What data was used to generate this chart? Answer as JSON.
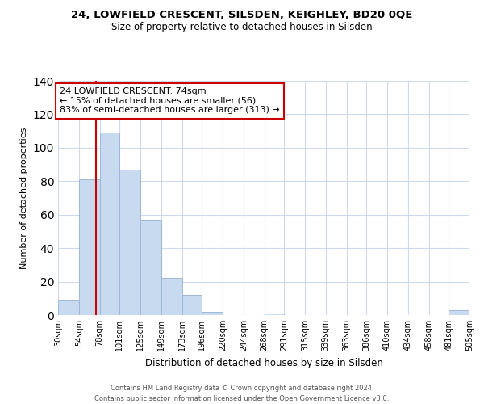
{
  "title": "24, LOWFIELD CRESCENT, SILSDEN, KEIGHLEY, BD20 0QE",
  "subtitle": "Size of property relative to detached houses in Silsden",
  "xlabel": "Distribution of detached houses by size in Silsden",
  "ylabel": "Number of detached properties",
  "bin_edges": [
    30,
    54,
    78,
    101,
    125,
    149,
    173,
    196,
    220,
    244,
    268,
    291,
    315,
    339,
    363,
    386,
    410,
    434,
    458,
    481,
    505
  ],
  "bar_heights": [
    9,
    81,
    109,
    87,
    57,
    22,
    12,
    2,
    0,
    0,
    1,
    0,
    0,
    0,
    0,
    0,
    0,
    0,
    0,
    3
  ],
  "bar_color": "#c8daf0",
  "bar_edge_color": "#a0b8d8",
  "vline_x": 74,
  "vline_color": "#cc0000",
  "ylim": [
    0,
    140
  ],
  "yticks": [
    0,
    20,
    40,
    60,
    80,
    100,
    120,
    140
  ],
  "tick_labels": [
    "30sqm",
    "54sqm",
    "78sqm",
    "101sqm",
    "125sqm",
    "149sqm",
    "173sqm",
    "196sqm",
    "220sqm",
    "244sqm",
    "268sqm",
    "291sqm",
    "315sqm",
    "339sqm",
    "363sqm",
    "386sqm",
    "410sqm",
    "434sqm",
    "458sqm",
    "481sqm",
    "505sqm"
  ],
  "annotation_box_title": "24 LOWFIELD CRESCENT: 74sqm",
  "annotation_line1": "← 15% of detached houses are smaller (56)",
  "annotation_line2": "83% of semi-detached houses are larger (313) →",
  "annotation_box_edge_color": "#cc0000",
  "footer_line1": "Contains HM Land Registry data © Crown copyright and database right 2024.",
  "footer_line2": "Contains public sector information licensed under the Open Government Licence v3.0.",
  "background_color": "#ffffff",
  "grid_color": "#ccdaec"
}
